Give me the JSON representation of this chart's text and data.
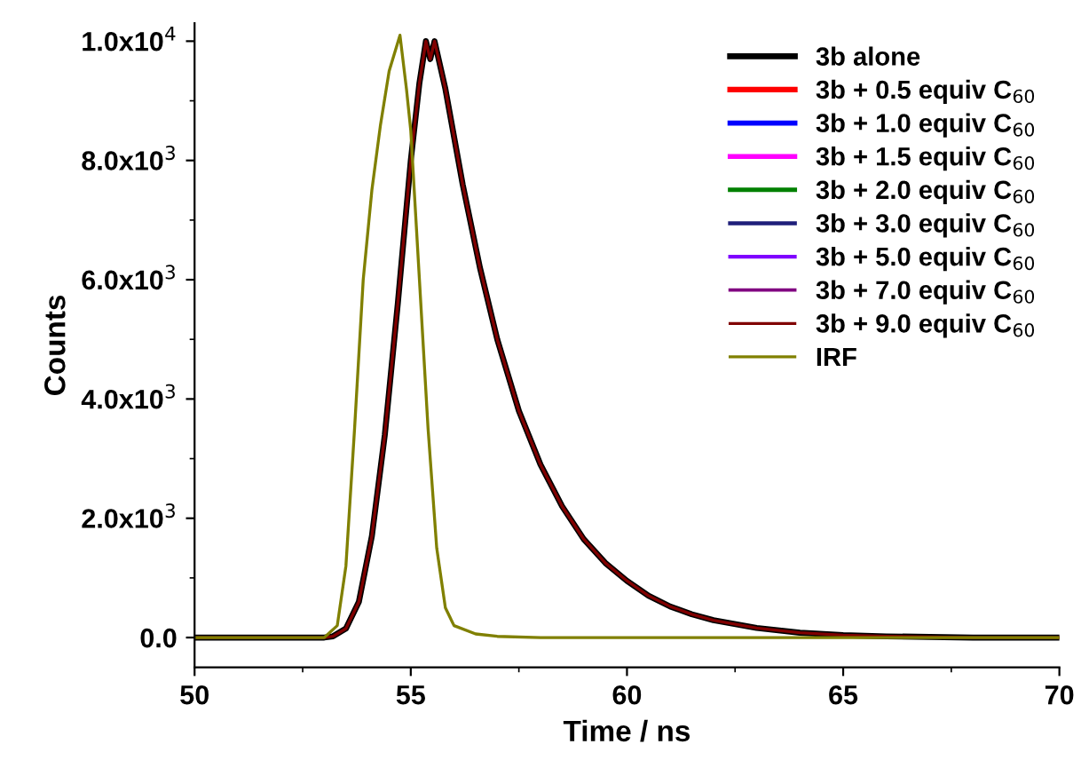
{
  "chart_data": {
    "type": "line",
    "xlabel": "Time / ns",
    "ylabel": "Counts",
    "xlim": [
      50,
      70
    ],
    "xticks": [
      50,
      55,
      60,
      65,
      70
    ],
    "ylim": [
      -500,
      10300
    ],
    "yticks": [
      {
        "value": 0,
        "label": "0.0"
      },
      {
        "value": 2000,
        "label": "2.0x10$^{3}$"
      },
      {
        "value": 4000,
        "label": "4.0x10$^{3}$"
      },
      {
        "value": 6000,
        "label": "6.0x10$^{3}$"
      },
      {
        "value": 8000,
        "label": "8.0x10$^{3}$"
      },
      {
        "value": 10000,
        "label": "1.0x10$^{4}$"
      }
    ],
    "grid": false,
    "legend": "top right",
    "marker": "none",
    "line_style": "solid",
    "x": [
      50,
      53,
      53.2,
      53.5,
      53.8,
      54.1,
      54.4,
      54.7,
      55.0,
      55.2,
      55.35,
      55.45,
      55.55,
      55.8,
      56.2,
      56.6,
      57,
      57.5,
      58,
      58.5,
      59,
      59.5,
      60,
      60.5,
      61,
      61.5,
      62,
      63,
      64,
      65,
      66,
      67,
      68,
      70
    ],
    "series": [
      {
        "name": "3b alone",
        "color": "#000000",
        "values": [
          0,
          0,
          20,
          150,
          600,
          1700,
          3400,
          5600,
          8000,
          9300,
          10000,
          9700,
          10000,
          9200,
          7600,
          6200,
          5000,
          3800,
          2900,
          2200,
          1650,
          1250,
          950,
          700,
          520,
          390,
          290,
          160,
          80,
          40,
          20,
          10,
          0,
          0
        ]
      },
      {
        "name": "3b + 0.5 equiv C$_{60}$",
        "color": "#ff0000",
        "values": [
          null,
          null,
          null,
          null,
          null,
          null,
          null,
          null,
          null,
          null,
          null,
          null,
          null,
          null,
          null,
          null,
          null,
          null,
          null,
          null,
          null,
          null,
          null,
          null,
          null,
          null,
          null,
          null,
          null,
          null,
          null,
          null,
          null,
          null
        ]
      },
      {
        "name": "3b + 1.0 equiv C$_{60}$",
        "color": "#0000ff",
        "values": [
          null,
          null,
          null,
          null,
          null,
          null,
          null,
          null,
          null,
          null,
          null,
          null,
          null,
          null,
          null,
          null,
          null,
          null,
          null,
          null,
          null,
          null,
          null,
          null,
          null,
          null,
          null,
          null,
          null,
          null,
          null,
          null,
          null,
          null
        ]
      },
      {
        "name": "3b + 1.5 equiv C$_{60}$",
        "color": "#ff00ff",
        "values": [
          null,
          null,
          null,
          null,
          null,
          null,
          null,
          null,
          null,
          null,
          null,
          null,
          null,
          null,
          null,
          null,
          null,
          null,
          null,
          null,
          null,
          null,
          null,
          null,
          null,
          null,
          null,
          null,
          null,
          null,
          null,
          null,
          null,
          null
        ]
      },
      {
        "name": "3b + 2.0 equiv C$_{60}$",
        "color": "#008000",
        "values": [
          null,
          null,
          null,
          null,
          null,
          null,
          null,
          null,
          null,
          null,
          null,
          null,
          null,
          null,
          null,
          null,
          null,
          null,
          null,
          null,
          null,
          null,
          null,
          null,
          null,
          null,
          null,
          null,
          null,
          null,
          null,
          null,
          null,
          null
        ]
      },
      {
        "name": "3b + 3.0 equiv C$_{60}$",
        "color": "#1f1f7a",
        "values": [
          null,
          null,
          null,
          null,
          null,
          null,
          null,
          null,
          null,
          null,
          null,
          null,
          null,
          null,
          null,
          null,
          null,
          null,
          null,
          null,
          null,
          null,
          null,
          null,
          null,
          null,
          null,
          null,
          null,
          null,
          null,
          null,
          null,
          null
        ]
      },
      {
        "name": "3b + 5.0 equiv C$_{60}$",
        "color": "#7f00ff",
        "values": [
          null,
          null,
          null,
          null,
          null,
          null,
          null,
          null,
          null,
          null,
          null,
          null,
          null,
          null,
          null,
          null,
          null,
          null,
          null,
          null,
          null,
          null,
          null,
          null,
          null,
          null,
          null,
          null,
          null,
          null,
          null,
          null,
          null,
          null
        ]
      },
      {
        "name": "3b + 7.0 equiv C$_{60}$",
        "color": "#800080",
        "values": [
          null,
          null,
          null,
          null,
          null,
          null,
          null,
          null,
          null,
          null,
          null,
          null,
          null,
          null,
          null,
          null,
          null,
          null,
          null,
          null,
          null,
          null,
          null,
          null,
          null,
          null,
          null,
          null,
          null,
          null,
          null,
          null,
          null,
          null
        ]
      },
      {
        "name": "3b + 9.0 equiv C$_{60}$",
        "color": "#800000",
        "values": [
          0,
          0,
          20,
          150,
          600,
          1700,
          3400,
          5600,
          8000,
          9300,
          10000,
          9700,
          10000,
          9200,
          7600,
          6200,
          5000,
          3800,
          2900,
          2200,
          1650,
          1250,
          950,
          700,
          520,
          390,
          290,
          160,
          80,
          40,
          20,
          10,
          0,
          0
        ]
      },
      {
        "name": "IRF",
        "color": "#808000",
        "x": [
          50,
          53,
          53.3,
          53.5,
          53.7,
          53.9,
          54.1,
          54.3,
          54.5,
          54.75,
          54.9,
          55.0,
          55.2,
          55.4,
          55.6,
          55.8,
          56,
          56.5,
          57,
          58,
          70
        ],
        "values": [
          0,
          0,
          200,
          1200,
          3500,
          6000,
          7500,
          8600,
          9500,
          10100,
          9200,
          8500,
          6000,
          3500,
          1500,
          500,
          200,
          60,
          20,
          0,
          0
        ]
      }
    ]
  }
}
